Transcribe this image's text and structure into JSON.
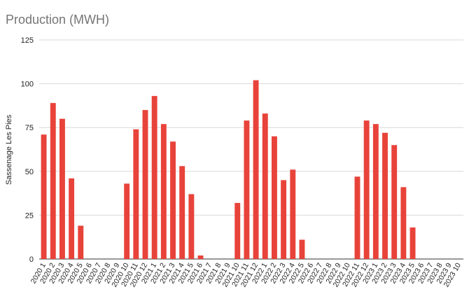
{
  "chart_data": {
    "type": "bar",
    "title": "Production (MWH)",
    "xlabel": "",
    "ylabel": "Sassenage Les Pies",
    "ylim": [
      0,
      125
    ],
    "yticks": [
      0,
      25,
      50,
      75,
      100,
      125
    ],
    "grid": true,
    "legend": "none",
    "bar_color": "#e8433a",
    "categories": [
      "2020 1",
      "2020 2",
      "2020 3",
      "2020 4",
      "2020 5",
      "2020 6",
      "2020 7",
      "2020 8",
      "2020 9",
      "2020 10",
      "2020 11",
      "2020 12",
      "2021 1",
      "2021 2",
      "2021 3",
      "2021 4",
      "2021 5",
      "2021 6",
      "2021 7",
      "2021 8",
      "2021 9",
      "2021 10",
      "2021 11",
      "2021 12",
      "2022 1",
      "2022 2",
      "2022 3",
      "2022 4",
      "2022 5",
      "2022 6",
      "2022 7",
      "2022 8",
      "2022 9",
      "2022 10",
      "2022 11",
      "2022 12",
      "2023 1",
      "2023 2",
      "2023 3",
      "2023 4",
      "2023 5",
      "2023 6",
      "2023 7",
      "2023 8",
      "2023 9",
      "2023 10"
    ],
    "values": [
      71,
      89,
      80,
      46,
      19,
      0,
      0,
      0,
      0,
      43,
      74,
      85,
      93,
      77,
      67,
      53,
      37,
      2,
      0,
      0,
      0,
      32,
      79,
      102,
      83,
      70,
      45,
      51,
      11,
      0,
      0,
      0,
      0,
      0,
      47,
      79,
      77,
      72,
      65,
      41,
      18,
      0,
      0,
      0,
      0,
      0
    ]
  }
}
